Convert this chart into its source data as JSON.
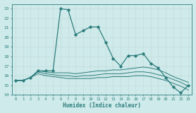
{
  "xlabel": "Humidex (Indice chaleur)",
  "x": [
    0,
    1,
    2,
    3,
    4,
    5,
    6,
    7,
    8,
    9,
    10,
    11,
    12,
    13,
    14,
    15,
    16,
    17,
    18,
    19,
    20,
    21,
    22,
    23
  ],
  "line1": [
    15.5,
    15.5,
    15.8,
    16.5,
    16.5,
    16.5,
    23.0,
    22.9,
    20.3,
    20.7,
    21.1,
    21.1,
    19.5,
    17.8,
    17.0,
    18.1,
    18.1,
    18.3,
    17.3,
    16.8,
    15.8,
    14.8,
    14.2,
    15.0
  ],
  "line2": [
    15.5,
    15.5,
    15.8,
    16.5,
    16.4,
    16.3,
    16.3,
    16.3,
    16.2,
    16.3,
    16.4,
    16.5,
    16.5,
    16.6,
    16.6,
    16.7,
    16.8,
    16.9,
    16.8,
    16.6,
    16.3,
    15.9,
    15.6,
    15.3
  ],
  "line3": [
    15.5,
    15.5,
    15.8,
    16.4,
    16.2,
    16.1,
    16.0,
    16.0,
    15.9,
    16.0,
    16.0,
    16.1,
    16.2,
    16.2,
    16.2,
    16.3,
    16.4,
    16.4,
    16.3,
    16.1,
    15.9,
    15.6,
    15.3,
    14.9
  ],
  "line4": [
    15.5,
    15.5,
    15.8,
    16.2,
    16.0,
    15.9,
    15.8,
    15.7,
    15.7,
    15.7,
    15.7,
    15.8,
    15.8,
    15.9,
    15.9,
    15.9,
    16.0,
    16.0,
    15.9,
    15.7,
    15.5,
    15.2,
    14.9,
    14.5
  ],
  "ylim": [
    14,
    23.5
  ],
  "yticks": [
    14,
    15,
    16,
    17,
    18,
    19,
    20,
    21,
    22,
    23
  ],
  "line_color": "#2e7d7d",
  "bg_color": "#ceeaea",
  "grid_color": "#b8d8d8"
}
